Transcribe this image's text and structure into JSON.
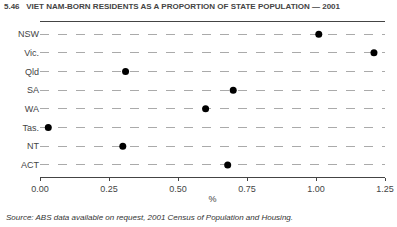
{
  "chart_data": {
    "type": "dot",
    "orientation": "horizontal",
    "title": "5.46   VIET NAM-BORN RESIDENTS AS A PROPORTION OF STATE POPULATION — 2001",
    "annotations": [
      "Source: ABS data available on request, 2001 Census of Population and Housing."
    ],
    "categories": [
      "NSW",
      "Vic.",
      "Qld",
      "SA",
      "WA",
      "Tas.",
      "NT",
      "ACT"
    ],
    "values": [
      1.01,
      1.21,
      0.31,
      0.7,
      0.6,
      0.03,
      0.3,
      0.68
    ],
    "xlabel": "%",
    "xlim": [
      0.0,
      1.25
    ],
    "xticks": [
      {
        "value": 0,
        "label": "0.00"
      },
      0.25,
      {
        "value": 0.5,
        "label": "0.50"
      },
      0.75,
      {
        "value": 1,
        "label": "1.00"
      },
      1.25
    ],
    "color": "#000000",
    "marker": "circle",
    "grid": "y"
  }
}
